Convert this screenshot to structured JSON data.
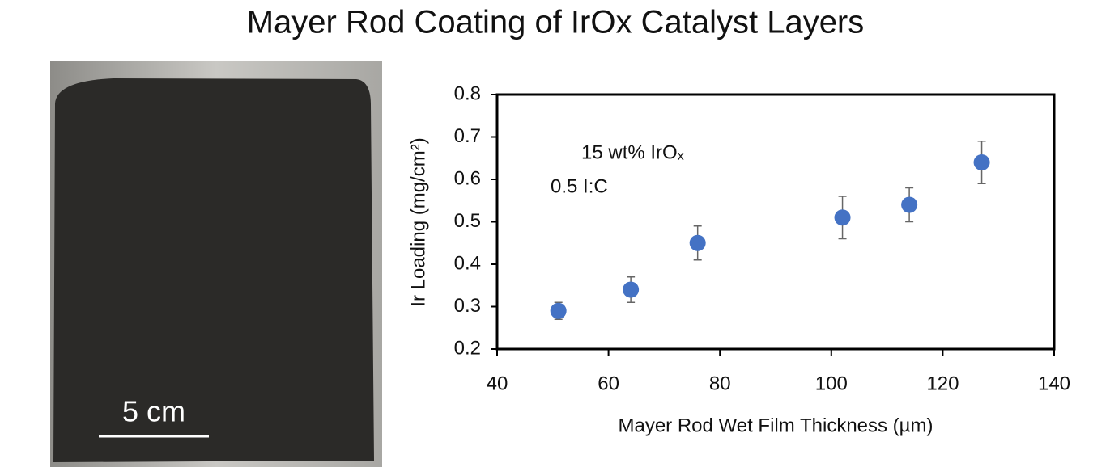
{
  "chart_data": {
    "type": "scatter",
    "title": "Mayer Rod Coating of IrOx Catalyst Layers",
    "xlabel": "Mayer Rod Wet Film Thickness (µm)",
    "ylabel": "Ir Loading (mg/cm²)",
    "annotations": [
      "15 wt% IrOₓ",
      "0.5 I:C"
    ],
    "image_label": "5 cm",
    "x": [
      51,
      64,
      76,
      102,
      114,
      127
    ],
    "series": [
      {
        "color": "#4472c4",
        "values": [
          0.29,
          0.34,
          0.45,
          0.51,
          0.54,
          0.64
        ],
        "errors": [
          0.02,
          0.03,
          0.04,
          0.05,
          0.04,
          0.05
        ]
      }
    ],
    "xlim": [
      40,
      140
    ],
    "xticks": [
      40,
      60,
      80,
      100,
      120,
      140
    ],
    "ylim": [
      0.2,
      0.8
    ],
    "yticks": [
      0.2,
      0.3,
      0.4,
      0.5,
      0.6,
      0.7,
      0.8
    ]
  }
}
